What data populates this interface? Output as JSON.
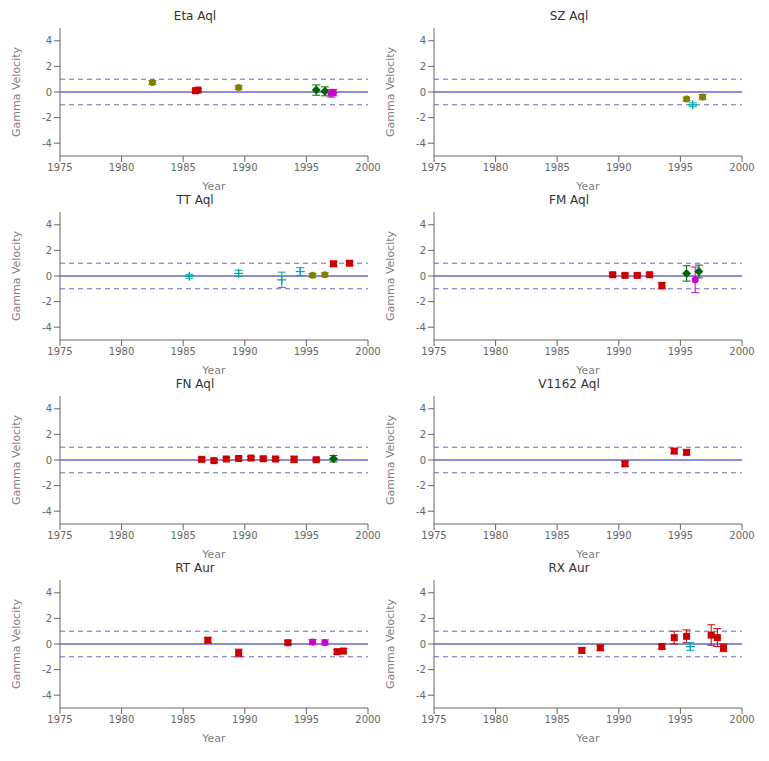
{
  "chart_data": [
    {
      "type": "scatter",
      "title": "Eta Aql",
      "x_label": "Year",
      "y_label": "Gamma Velocity",
      "xlim": [
        1975,
        2000
      ],
      "ylim": [
        -5,
        5
      ],
      "xticks": [
        1975,
        1980,
        1985,
        1990,
        1995,
        2000
      ],
      "yticks": [
        -4,
        -2,
        0,
        2,
        4
      ],
      "grid": false,
      "hlines": [
        {
          "value": 0.0,
          "color": "#6666cc",
          "line_style": "solid"
        },
        {
          "value": 1.0,
          "color": "#6666cc",
          "line_style": "dashed"
        },
        {
          "value": -1.0,
          "color": "#6666cc",
          "line_style": "dashed"
        }
      ],
      "series": [
        {
          "color": "#808000",
          "marker": "circle",
          "x": [
            1982.5,
            1989.5
          ],
          "values": [
            0.75,
            0.35
          ],
          "errors": [
            0.15,
            0.15
          ]
        },
        {
          "color": "#cc0000",
          "marker": "square",
          "x": [
            1986.0,
            1986.2
          ],
          "values": [
            0.1,
            0.15
          ],
          "errors": [
            0.1,
            0.1
          ]
        },
        {
          "color": "#006400",
          "marker": "diamond",
          "x": [
            1995.8,
            1996.5
          ],
          "values": [
            0.15,
            0.05
          ],
          "errors": [
            0.4,
            0.35
          ]
        },
        {
          "color": "#cc00cc",
          "marker": "circle",
          "x": [
            1997.0,
            1997.2
          ],
          "values": [
            -0.1,
            -0.05
          ],
          "errors": [
            0.3,
            0.25
          ]
        }
      ]
    },
    {
      "type": "scatter",
      "title": "SZ Aql",
      "x_label": "Year",
      "y_label": "Gamma Velocity",
      "xlim": [
        1975,
        2000
      ],
      "ylim": [
        -5,
        5
      ],
      "xticks": [
        1975,
        1980,
        1985,
        1990,
        1995,
        2000
      ],
      "yticks": [
        -4,
        -2,
        0,
        2,
        4
      ],
      "grid": false,
      "hlines": [
        {
          "value": 0.0,
          "color": "#6666cc",
          "line_style": "solid"
        },
        {
          "value": 1.0,
          "color": "#6666cc",
          "line_style": "dashed"
        },
        {
          "value": -1.0,
          "color": "#6666cc",
          "line_style": "dashed"
        }
      ],
      "series": [
        {
          "color": "#808000",
          "marker": "circle",
          "x": [
            1995.5,
            1996.8
          ],
          "values": [
            -0.55,
            -0.4
          ],
          "errors": [
            0.15,
            0.2
          ]
        },
        {
          "color": "#00aaaa",
          "marker": "plus",
          "x": [
            1996.0
          ],
          "values": [
            -1.0
          ],
          "errors": [
            0.15
          ]
        }
      ]
    },
    {
      "type": "scatter",
      "title": "TT Aql",
      "x_label": "Year",
      "y_label": "Gamma Velocity",
      "xlim": [
        1975,
        2000
      ],
      "ylim": [
        -5,
        5
      ],
      "xticks": [
        1975,
        1980,
        1985,
        1990,
        1995,
        2000
      ],
      "yticks": [
        -4,
        -2,
        0,
        2,
        4
      ],
      "grid": false,
      "hlines": [
        {
          "value": 0.0,
          "color": "#6666cc",
          "line_style": "solid"
        },
        {
          "value": 1.0,
          "color": "#6666cc",
          "line_style": "dashed"
        },
        {
          "value": -1.0,
          "color": "#6666cc",
          "line_style": "dashed"
        }
      ],
      "series": [
        {
          "color": "#00aaaa",
          "marker": "plus",
          "x": [
            1985.5,
            1989.5,
            1993.0,
            1994.5
          ],
          "values": [
            -0.02,
            0.2,
            -0.3,
            0.35
          ],
          "errors": [
            0.15,
            0.25,
            0.6,
            0.3
          ]
        },
        {
          "color": "#808000",
          "marker": "circle",
          "x": [
            1995.5,
            1996.5
          ],
          "values": [
            0.05,
            0.1
          ],
          "errors": [
            0.15,
            0.15
          ]
        },
        {
          "color": "#cc0000",
          "marker": "square",
          "x": [
            1997.2,
            1998.5
          ],
          "values": [
            0.95,
            1.0
          ],
          "errors": [
            0.2,
            0.15
          ]
        }
      ]
    },
    {
      "type": "scatter",
      "title": "FM Aql",
      "x_label": "Year",
      "y_label": "Gamma Velocity",
      "xlim": [
        1975,
        2000
      ],
      "ylim": [
        -5,
        5
      ],
      "xticks": [
        1975,
        1980,
        1985,
        1990,
        1995,
        2000
      ],
      "yticks": [
        -4,
        -2,
        0,
        2,
        4
      ],
      "grid": false,
      "hlines": [
        {
          "value": 0.0,
          "color": "#6666cc",
          "line_style": "solid"
        },
        {
          "value": 1.0,
          "color": "#6666cc",
          "line_style": "dashed"
        },
        {
          "value": -1.0,
          "color": "#6666cc",
          "line_style": "dashed"
        }
      ],
      "series": [
        {
          "color": "#cc0000",
          "marker": "square",
          "x": [
            1989.5,
            1990.5,
            1991.5,
            1992.5,
            1993.5
          ],
          "values": [
            0.1,
            0.05,
            0.05,
            0.1,
            -0.75
          ],
          "errors": [
            0.12,
            0.12,
            0.12,
            0.12,
            0.25
          ]
        },
        {
          "color": "#006400",
          "marker": "diamond",
          "x": [
            1995.5,
            1996.5
          ],
          "values": [
            0.2,
            0.35
          ],
          "errors": [
            0.6,
            0.5
          ]
        },
        {
          "color": "#cc00cc",
          "marker": "circle",
          "x": [
            1996.2
          ],
          "values": [
            -0.3
          ],
          "errors": [
            1.0
          ]
        }
      ]
    },
    {
      "type": "scatter",
      "title": "FN Aql",
      "x_label": "Year",
      "y_label": "Gamma Velocity",
      "xlim": [
        1975,
        2000
      ],
      "ylim": [
        -5,
        5
      ],
      "xticks": [
        1975,
        1980,
        1985,
        1990,
        1995,
        2000
      ],
      "yticks": [
        -4,
        -2,
        0,
        2,
        4
      ],
      "grid": false,
      "hlines": [
        {
          "value": 0.0,
          "color": "#6666cc",
          "line_style": "solid"
        },
        {
          "value": 1.0,
          "color": "#6666cc",
          "line_style": "dashed"
        },
        {
          "value": -1.0,
          "color": "#6666cc",
          "line_style": "dashed"
        }
      ],
      "series": [
        {
          "color": "#cc0000",
          "marker": "square",
          "x": [
            1986.5,
            1987.5,
            1988.5,
            1989.5,
            1990.5,
            1991.5,
            1992.5,
            1994.0,
            1995.8
          ],
          "values": [
            0.05,
            -0.05,
            0.08,
            0.12,
            0.15,
            0.1,
            0.08,
            0.05,
            0.02
          ],
          "errors": [
            0.15,
            0.12,
            0.12,
            0.12,
            0.12,
            0.12,
            0.12,
            0.25,
            0.12
          ]
        },
        {
          "color": "#006400",
          "marker": "diamond",
          "x": [
            1997.2
          ],
          "values": [
            0.1
          ],
          "errors": [
            0.25
          ]
        }
      ]
    },
    {
      "type": "scatter",
      "title": "V1162 Aql",
      "x_label": "Year",
      "y_label": "Gamma Velocity",
      "xlim": [
        1975,
        2000
      ],
      "ylim": [
        -5,
        5
      ],
      "xticks": [
        1975,
        1980,
        1985,
        1990,
        1995,
        2000
      ],
      "yticks": [
        -4,
        -2,
        0,
        2,
        4
      ],
      "grid": false,
      "hlines": [
        {
          "value": 0.0,
          "color": "#6666cc",
          "line_style": "solid"
        },
        {
          "value": 1.0,
          "color": "#6666cc",
          "line_style": "dashed"
        },
        {
          "value": -1.0,
          "color": "#6666cc",
          "line_style": "dashed"
        }
      ],
      "series": [
        {
          "color": "#cc0000",
          "marker": "square",
          "x": [
            1990.5,
            1994.5,
            1995.5
          ],
          "values": [
            -0.3,
            0.7,
            0.6
          ],
          "errors": [
            0.2,
            0.2,
            0.2
          ]
        }
      ]
    },
    {
      "type": "scatter",
      "title": "RT Aur",
      "x_label": "Year",
      "y_label": "Gamma Velocity",
      "xlim": [
        1975,
        2000
      ],
      "ylim": [
        -5,
        5
      ],
      "xticks": [
        1975,
        1980,
        1985,
        1990,
        1995,
        2000
      ],
      "yticks": [
        -4,
        -2,
        0,
        2,
        4
      ],
      "grid": false,
      "hlines": [
        {
          "value": 0.0,
          "color": "#6666cc",
          "line_style": "solid"
        },
        {
          "value": 1.0,
          "color": "#6666cc",
          "line_style": "dashed"
        },
        {
          "value": -1.0,
          "color": "#6666cc",
          "line_style": "dashed"
        }
      ],
      "series": [
        {
          "color": "#cc0000",
          "marker": "square",
          "x": [
            1987.0,
            1989.5,
            1993.5,
            1997.5,
            1998.0
          ],
          "values": [
            0.3,
            -0.7,
            0.1,
            -0.6,
            -0.55
          ],
          "errors": [
            0.2,
            0.3,
            0.15,
            0.15,
            0.2
          ]
        },
        {
          "color": "#cc00cc",
          "marker": "circle",
          "x": [
            1995.5,
            1996.5
          ],
          "values": [
            0.15,
            0.12
          ],
          "errors": [
            0.2,
            0.2
          ]
        }
      ]
    },
    {
      "type": "scatter",
      "title": "RX Aur",
      "x_label": "Year",
      "y_label": "Gamma Velocity",
      "xlim": [
        1975,
        2000
      ],
      "ylim": [
        -5,
        5
      ],
      "xticks": [
        1975,
        1980,
        1985,
        1990,
        1995,
        2000
      ],
      "yticks": [
        -4,
        -2,
        0,
        2,
        4
      ],
      "grid": false,
      "hlines": [
        {
          "value": 0.0,
          "color": "#6666cc",
          "line_style": "solid"
        },
        {
          "value": 1.0,
          "color": "#6666cc",
          "line_style": "dashed"
        },
        {
          "value": -1.0,
          "color": "#6666cc",
          "line_style": "dashed"
        }
      ],
      "series": [
        {
          "color": "#cc0000",
          "marker": "square",
          "x": [
            1987.0,
            1988.5,
            1993.5,
            1994.5,
            1995.5,
            1997.5,
            1998.0,
            1998.5
          ],
          "values": [
            -0.5,
            -0.3,
            -0.2,
            0.5,
            0.6,
            0.7,
            0.5,
            -0.3
          ],
          "errors": [
            0.2,
            0.2,
            0.2,
            0.5,
            0.5,
            0.8,
            0.7,
            0.3
          ]
        },
        {
          "color": "#00aaaa",
          "marker": "plus",
          "x": [
            1995.8
          ],
          "values": [
            -0.2
          ],
          "errors": [
            0.3
          ]
        }
      ]
    }
  ]
}
